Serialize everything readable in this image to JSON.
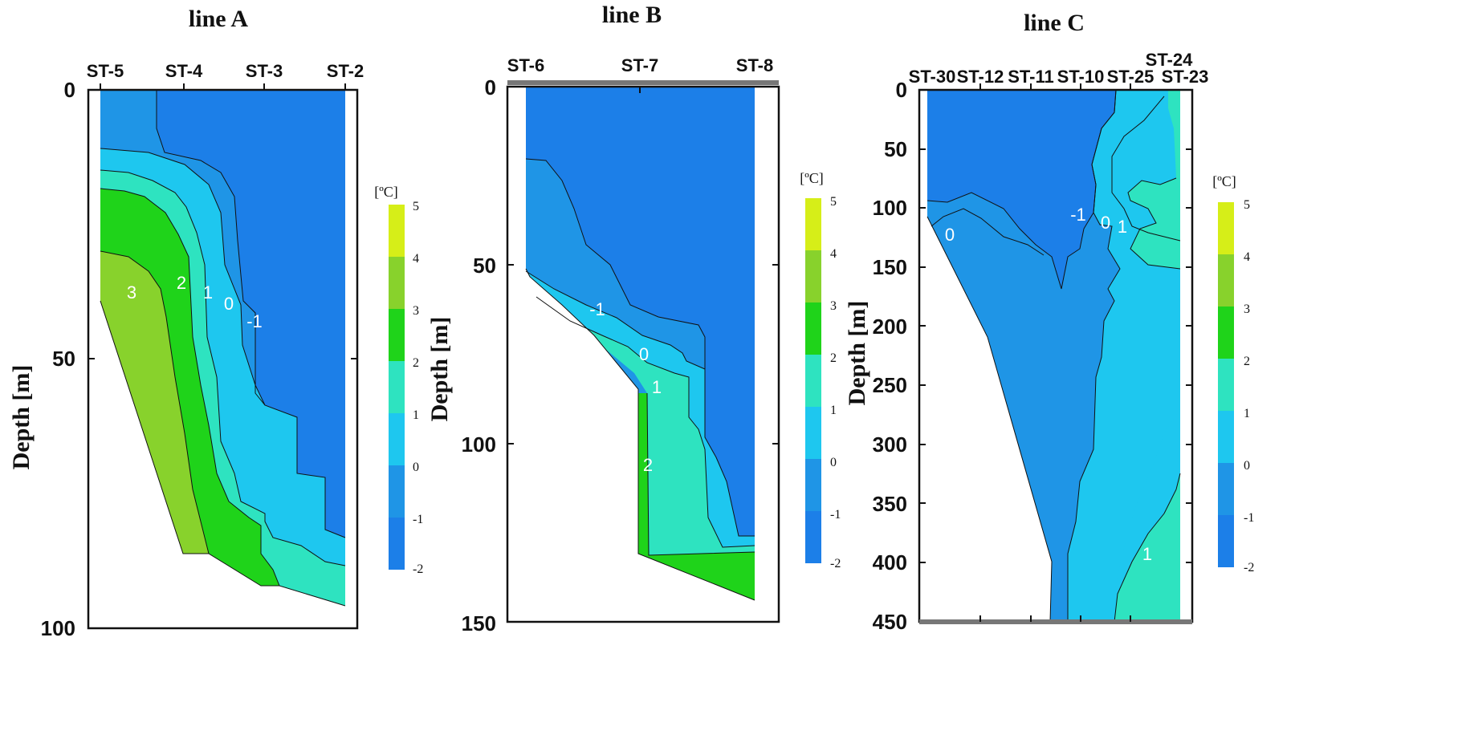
{
  "chart_data": [
    {
      "type": "contour",
      "title": "line A",
      "ylabel": "Depth [m]",
      "ylim": [
        0,
        100
      ],
      "yticks": [
        0,
        50,
        100
      ],
      "stations": [
        {
          "name": "ST-5",
          "x": 0,
          "bottom_depth": 38
        },
        {
          "name": "ST-4",
          "x": 1,
          "bottom_depth": 85
        },
        {
          "name": "ST-3",
          "x": 2,
          "bottom_depth": 93
        },
        {
          "name": "ST-2",
          "x": 3,
          "bottom_depth": 96
        }
      ],
      "colorbar": {
        "unit": "[ºC]",
        "ticks": [
          5,
          4,
          3,
          2,
          1,
          0,
          -1,
          -2
        ]
      },
      "contour_labels": [
        {
          "text": "3",
          "x": 0.4,
          "depth": 34
        },
        {
          "text": "2",
          "x": 1.0,
          "depth": 32
        },
        {
          "text": "1",
          "x": 1.3,
          "depth": 34
        },
        {
          "text": "0",
          "x": 1.6,
          "depth": 36
        },
        {
          "text": "-1",
          "x": 1.9,
          "depth": 39
        }
      ]
    },
    {
      "type": "contour",
      "title": "line B",
      "ylabel": "Depth [m]",
      "ylim": [
        0,
        150
      ],
      "yticks": [
        0,
        50,
        100,
        150
      ],
      "stations": [
        {
          "name": "ST-6",
          "x": 0,
          "bottom_depth": 52
        },
        {
          "name": "ST-7",
          "x": 1,
          "bottom_depth": 130
        },
        {
          "name": "ST-8",
          "x": 2,
          "bottom_depth": 148
        }
      ],
      "colorbar": {
        "unit": "[ºC]",
        "ticks": [
          5,
          4,
          3,
          2,
          1,
          0,
          -1,
          -2
        ]
      },
      "contour_labels": [
        {
          "text": "-1",
          "x": 0.6,
          "depth": 63
        },
        {
          "text": "0",
          "x": 1.03,
          "depth": 75
        },
        {
          "text": "1",
          "x": 1.15,
          "depth": 84
        },
        {
          "text": "2",
          "x": 1.05,
          "depth": 108
        }
      ]
    },
    {
      "type": "contour",
      "title": "line C",
      "ylabel": "Depth [m]",
      "ylim": [
        0,
        450
      ],
      "yticks": [
        0,
        50,
        100,
        150,
        200,
        250,
        300,
        350,
        400,
        450
      ],
      "stations": [
        {
          "name": "ST-30",
          "x": 0
        },
        {
          "name": "ST-12",
          "x": 1
        },
        {
          "name": "ST-11",
          "x": 2
        },
        {
          "name": "ST-10",
          "x": 3
        },
        {
          "name": "ST-25",
          "x": 4
        },
        {
          "name": "ST-24",
          "x": 5
        },
        {
          "name": "ST-23",
          "x": 5.4
        }
      ],
      "colorbar": {
        "unit": "[ºC]",
        "ticks": [
          5,
          4,
          3,
          2,
          1,
          0,
          -1,
          -2
        ]
      },
      "contour_labels": [
        {
          "text": "0",
          "x": 0.4,
          "depth": 120
        },
        {
          "text": "-1",
          "x": 3.0,
          "depth": 108
        },
        {
          "text": "0",
          "x": 3.5,
          "depth": 115
        },
        {
          "text": "1",
          "x": 3.85,
          "depth": 118
        },
        {
          "text": "1",
          "x": 4.6,
          "depth": 400
        }
      ]
    }
  ],
  "colors": {
    "lt_m1": "#1c7fe8",
    "m1_0": "#1f95e6",
    "0_1": "#1ec7ef",
    "1_2": "#2ee3c0",
    "2_3": "#1fd31a",
    "3_4": "#88d22c",
    "4_5": "#d6ee18",
    "frame": "#111111",
    "bottom": "#777777"
  }
}
